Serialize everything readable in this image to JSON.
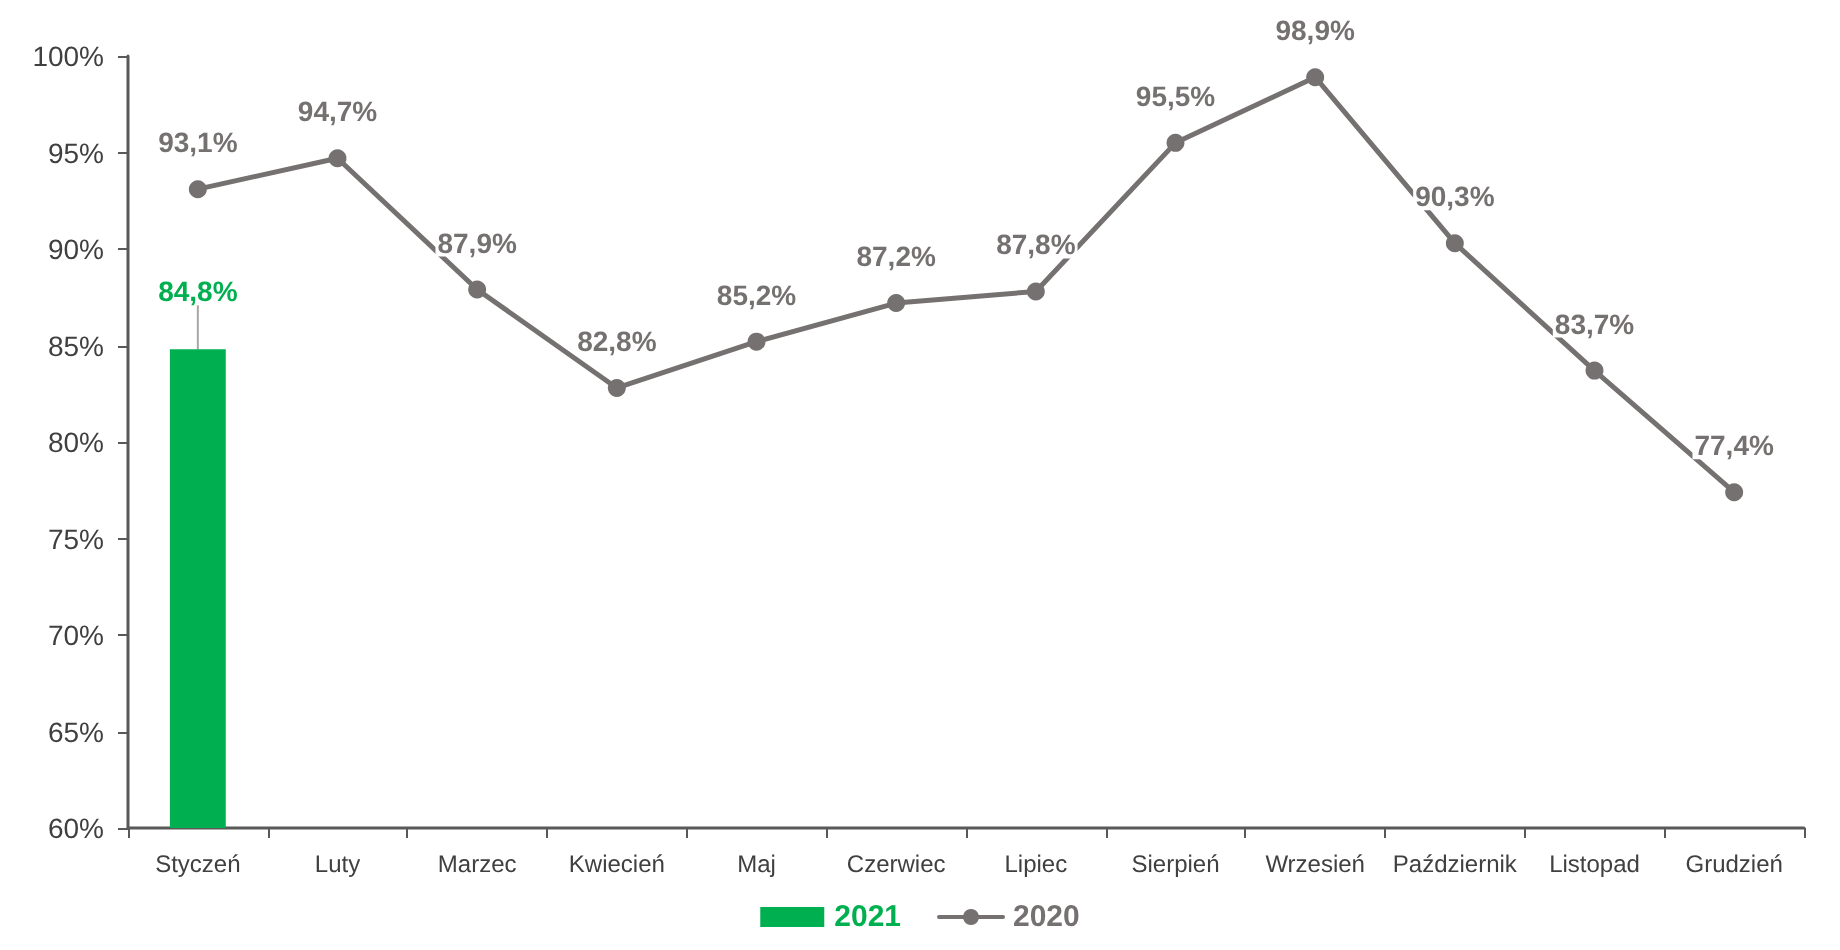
{
  "chart_data": {
    "type": "bar",
    "categories": [
      "Styczeń",
      "Luty",
      "Marzec",
      "Kwiecień",
      "Maj",
      "Czerwiec",
      "Lipiec",
      "Sierpień",
      "Wrzesień",
      "Październik",
      "Listopad",
      "Grudzień"
    ],
    "series": [
      {
        "name": "2021",
        "color": "#00b050",
        "values": [
          84.8,
          null,
          null,
          null,
          null,
          null,
          null,
          null,
          null,
          null,
          null,
          null
        ],
        "value_labels": [
          "84,8%",
          null,
          null,
          null,
          null,
          null,
          null,
          null,
          null,
          null,
          null,
          null
        ]
      },
      {
        "name": "2020",
        "type": "line",
        "color": "#767171",
        "values": [
          93.1,
          94.7,
          87.9,
          82.8,
          85.2,
          87.2,
          87.8,
          95.5,
          98.9,
          90.3,
          83.7,
          77.4
        ],
        "value_labels": [
          "93,1%",
          "94,7%",
          "87,9%",
          "82,8%",
          "85,2%",
          "87,2%",
          "87,8%",
          "95,5%",
          "98,9%",
          "90,3%",
          "83,7%",
          "77,4%"
        ]
      }
    ],
    "ylim": [
      60,
      100
    ],
    "yticks": [
      {
        "value": 60,
        "label": "60%"
      },
      {
        "value": 65,
        "label": "65%"
      },
      {
        "value": 70,
        "label": "70%"
      },
      {
        "value": 75,
        "label": "75%"
      },
      {
        "value": 80,
        "label": "80%"
      },
      {
        "value": 85,
        "label": "85%"
      },
      {
        "value": 90,
        "label": "90%"
      },
      {
        "value": 95,
        "label": "95%"
      },
      {
        "value": 100,
        "label": "100%"
      }
    ],
    "legend": "bottom",
    "marker": "circle"
  }
}
